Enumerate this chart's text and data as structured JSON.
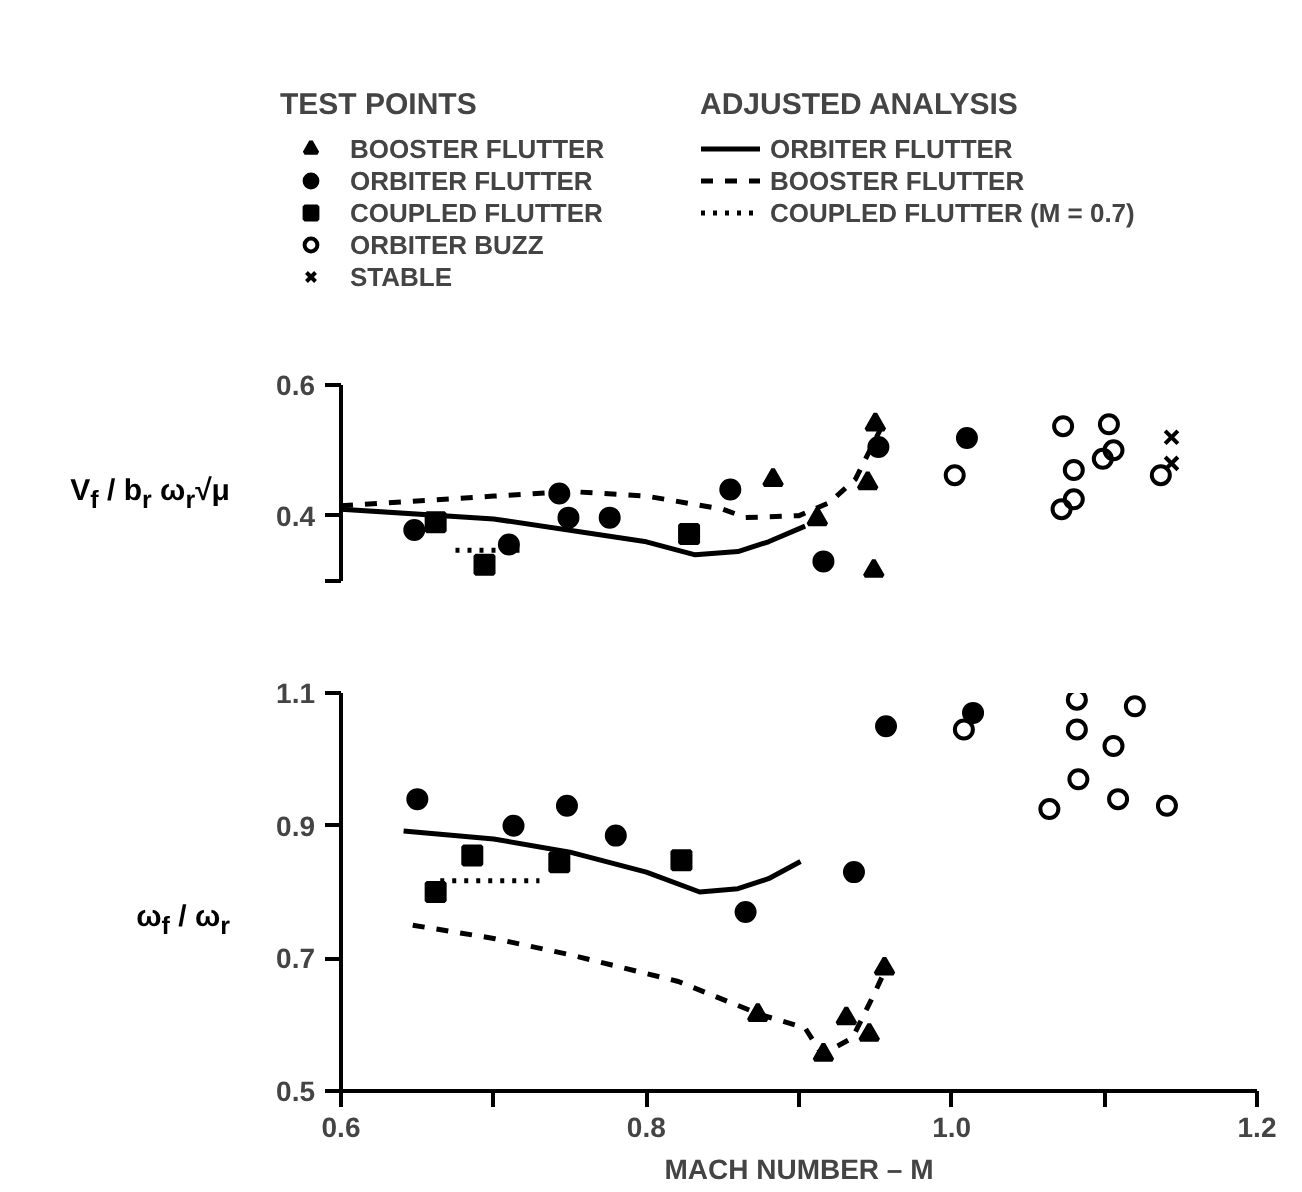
{
  "chart_data": [
    {
      "type": "scatter",
      "ylabel": "V$_{f}$ / b$_{r}$ ω$_{r}$√μ",
      "xlim": [
        0.6,
        1.2
      ],
      "ylim": [
        0.3,
        0.6
      ],
      "yticks": [
        {
          "value": 0.3,
          "label": null
        },
        0.4,
        0.6
      ],
      "tick_labels": "y",
      "grid": false,
      "legend": "top",
      "legend_title": "TEST POINTS",
      "annotations": [
        "ADJUSTED ANALYSIS"
      ],
      "series": [
        {
          "name": "BOOSTER FLUTTER",
          "marker": "triangle",
          "color": "#000000",
          "x": [
            0.883,
            0.912,
            0.945,
            0.95,
            0.949
          ],
          "values": [
            0.455,
            0.395,
            0.45,
            0.54,
            0.316
          ]
        },
        {
          "name": "ORBITER FLUTTER",
          "marker": "circle",
          "color": "#000000",
          "x": [
            0.648,
            0.71,
            0.743,
            0.749,
            0.776,
            0.855,
            0.916,
            0.952,
            1.01
          ],
          "values": [
            0.378,
            0.356,
            0.434,
            0.397,
            0.397,
            0.44,
            0.33,
            0.505,
            0.519
          ]
        },
        {
          "name": "COUPLED FLUTTER",
          "marker": "square",
          "color": "#000000",
          "x": [
            0.662,
            0.694,
            0.828
          ],
          "values": [
            0.39,
            0.325,
            0.372
          ]
        },
        {
          "name": "ORBITER BUZZ",
          "marker": "circle_open",
          "color": "#000000",
          "x": [
            1.002,
            1.073,
            1.08,
            1.072,
            1.08,
            1.103,
            1.099,
            1.106,
            1.137
          ],
          "values": [
            0.462,
            0.537,
            0.47,
            0.41,
            0.425,
            0.54,
            0.487,
            0.5,
            0.462
          ]
        },
        {
          "name": "STABLE",
          "marker": "cross",
          "color": "#000000",
          "x": [
            1.144,
            1.144
          ],
          "values": [
            0.52,
            0.48
          ]
        },
        {
          "name": "ORBITER FLUTTER",
          "type": "line",
          "line_style": "solid",
          "color": "#000000",
          "x": [
            0.6,
            0.7,
            0.8,
            0.832,
            0.86,
            0.88,
            0.904
          ],
          "values": [
            0.41,
            0.395,
            0.36,
            0.34,
            0.345,
            0.36,
            0.384
          ]
        },
        {
          "name": "BOOSTER FLUTTER",
          "type": "line",
          "line_style": "dashed",
          "color": "#000000",
          "x": [
            0.6,
            0.7,
            0.75,
            0.8,
            0.85,
            0.865,
            0.9,
            0.92,
            0.937,
            0.955
          ],
          "values": [
            0.415,
            0.43,
            0.437,
            0.43,
            0.41,
            0.397,
            0.4,
            0.42,
            0.456,
            0.54
          ]
        },
        {
          "name": "COUPLED FLUTTER (M = 0.7)",
          "type": "line",
          "line_style": "dotted",
          "color": "#000000",
          "x": [
            0.675,
            0.718
          ],
          "values": [
            0.347,
            0.347
          ]
        }
      ]
    },
    {
      "type": "scatter",
      "xlabel": "MACH NUMBER – M",
      "ylabel": "ω$_{f}$ / ω$_{r}$",
      "xlim": [
        0.6,
        1.2
      ],
      "ylim": [
        0.5,
        1.1
      ],
      "xticks": [
        0.6,
        {
          "value": 0.7,
          "label": null
        },
        0.8,
        {
          "value": 0.9,
          "label": null
        },
        {
          "value": 1.0,
          "label": "1.0"
        },
        {
          "value": 1.1,
          "label": null
        },
        1.2
      ],
      "yticks": [
        0.5,
        0.7,
        0.9,
        1.1
      ],
      "grid": false,
      "series": [
        {
          "marker": "triangle",
          "color": "#000000",
          "x": [
            0.873,
            0.916,
            0.931,
            0.946,
            0.956
          ],
          "values": [
            0.615,
            0.555,
            0.61,
            0.585,
            0.685
          ]
        },
        {
          "marker": "circle",
          "color": "#000000",
          "x": [
            0.65,
            0.713,
            0.748,
            0.78,
            0.865,
            0.936,
            0.957,
            1.014
          ],
          "values": [
            0.94,
            0.9,
            0.93,
            0.885,
            0.77,
            0.83,
            1.05,
            1.07
          ]
        },
        {
          "marker": "square",
          "color": "#000000",
          "x": [
            0.662,
            0.686,
            0.743,
            0.823
          ],
          "values": [
            0.8,
            0.855,
            0.845,
            0.848
          ]
        },
        {
          "marker": "circle_open",
          "color": "#000000",
          "x": [
            1.008,
            1.082,
            1.12,
            1.082,
            1.106,
            1.083,
            1.064,
            1.109,
            1.141
          ],
          "values": [
            1.045,
            1.09,
            1.08,
            1.045,
            1.02,
            0.97,
            0.925,
            0.94,
            0.93
          ]
        },
        {
          "type": "line",
          "line_style": "solid",
          "color": "#000000",
          "x": [
            0.641,
            0.7,
            0.75,
            0.8,
            0.835,
            0.86,
            0.88,
            0.901
          ],
          "values": [
            0.892,
            0.88,
            0.86,
            0.83,
            0.8,
            0.805,
            0.82,
            0.846
          ]
        },
        {
          "type": "line",
          "line_style": "dashed",
          "color": "#000000",
          "x": [
            0.647,
            0.7,
            0.751,
            0.821,
            0.875,
            0.904,
            0.915,
            0.935,
            0.95,
            0.958
          ],
          "values": [
            0.75,
            0.73,
            0.705,
            0.665,
            0.615,
            0.595,
            0.555,
            0.58,
            0.65,
            0.69
          ]
        },
        {
          "type": "line",
          "line_style": "dotted",
          "color": "#000000",
          "x": [
            0.665,
            0.73
          ],
          "values": [
            0.817,
            0.817
          ]
        }
      ]
    }
  ]
}
